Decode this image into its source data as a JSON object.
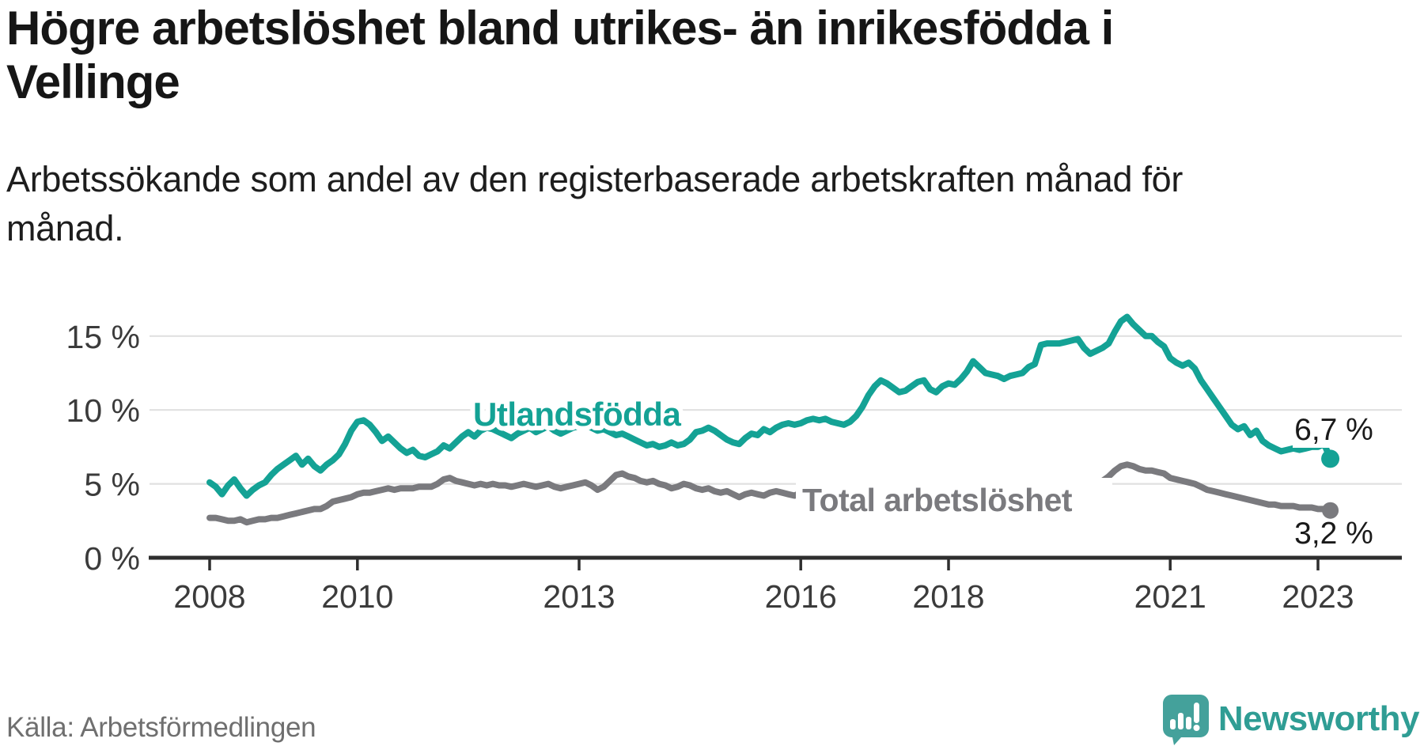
{
  "header": {
    "title_lines": [
      "Högre arbetslöshet bland utrikes- än inrikesfödda i",
      "Vellinge"
    ],
    "subtitle_lines": [
      "Arbetssökande som andel av den registerbaserade arbetskraften månad för",
      "månad."
    ]
  },
  "footer": {
    "source": "Källa: Arbetsförmedlingen",
    "brand": "Newsworthy"
  },
  "colors": {
    "series_foreign": "#14a295",
    "series_total": "#7a7a7e",
    "axis": "#2e2e2e",
    "axis_text": "#3b3b3b",
    "gridline": "#e1e1e1",
    "end_label_text": "#1a1a1a",
    "logo_bubble": "#44a19b",
    "logo_text": "#2f9d94"
  },
  "chart_data": {
    "type": "line",
    "unit": "%",
    "frequency": "monthly",
    "x_start": {
      "year": 2008,
      "month": 1
    },
    "x_end": {
      "year": 2023,
      "month": 3
    },
    "x_ticks": [
      2008,
      2010,
      2013,
      2016,
      2018,
      2021,
      2023
    ],
    "y_ticks": [
      0,
      5,
      10,
      15
    ],
    "y_tick_suffix": " %",
    "ylim": [
      0,
      16.8
    ],
    "grid": "horizontal",
    "series": [
      {
        "name": "Utlandsfödda",
        "color": "#14a295",
        "end_label": "6,7 %",
        "end_value": 6.7,
        "values": [
          5.1,
          4.8,
          4.3,
          4.9,
          5.3,
          4.7,
          4.2,
          4.6,
          4.9,
          5.1,
          5.6,
          6.0,
          6.3,
          6.6,
          6.9,
          6.3,
          6.7,
          6.2,
          5.9,
          6.3,
          6.6,
          7.0,
          7.7,
          8.6,
          9.2,
          9.3,
          9.0,
          8.5,
          7.9,
          8.2,
          7.8,
          7.4,
          7.1,
          7.3,
          6.9,
          6.8,
          7.0,
          7.2,
          7.6,
          7.4,
          7.8,
          8.2,
          8.5,
          8.2,
          8.6,
          8.8,
          8.7,
          8.5,
          8.3,
          8.1,
          8.4,
          8.6,
          8.8,
          8.5,
          8.7,
          8.9,
          8.6,
          8.4,
          8.6,
          8.8,
          8.9,
          9.0,
          8.8,
          8.6,
          8.7,
          8.5,
          8.3,
          8.4,
          8.2,
          8.0,
          7.8,
          7.6,
          7.7,
          7.5,
          7.6,
          7.8,
          7.6,
          7.7,
          8.0,
          8.5,
          8.6,
          8.8,
          8.6,
          8.3,
          8.0,
          7.8,
          7.7,
          8.1,
          8.4,
          8.3,
          8.7,
          8.5,
          8.8,
          9.0,
          9.1,
          9.0,
          9.1,
          9.3,
          9.4,
          9.3,
          9.4,
          9.2,
          9.1,
          9.0,
          9.2,
          9.6,
          10.2,
          11.0,
          11.6,
          12.0,
          11.8,
          11.5,
          11.2,
          11.3,
          11.6,
          11.9,
          12.0,
          11.4,
          11.2,
          11.6,
          11.8,
          11.7,
          12.1,
          12.6,
          13.3,
          12.9,
          12.5,
          12.4,
          12.3,
          12.1,
          12.3,
          12.4,
          12.5,
          12.9,
          13.1,
          14.4,
          14.5,
          14.5,
          14.5,
          14.6,
          14.7,
          14.8,
          14.2,
          13.8,
          14.0,
          14.2,
          14.5,
          15.3,
          16.0,
          16.3,
          15.8,
          15.4,
          15.0,
          15.0,
          14.6,
          14.3,
          13.5,
          13.2,
          13.0,
          13.2,
          12.8,
          12.0,
          11.4,
          10.8,
          10.2,
          9.6,
          9.0,
          8.7,
          8.9,
          8.3,
          8.6,
          7.9,
          7.6,
          7.4,
          7.2,
          7.3,
          7.4,
          7.3,
          7.4,
          7.5,
          7.5,
          7.7,
          6.7
        ]
      },
      {
        "name": "Total arbetslöshet",
        "color": "#7a7a7e",
        "end_label": "3,2 %",
        "end_value": 3.2,
        "values": [
          2.7,
          2.7,
          2.6,
          2.5,
          2.5,
          2.6,
          2.4,
          2.5,
          2.6,
          2.6,
          2.7,
          2.7,
          2.8,
          2.9,
          3.0,
          3.1,
          3.2,
          3.3,
          3.3,
          3.5,
          3.8,
          3.9,
          4.0,
          4.1,
          4.3,
          4.4,
          4.4,
          4.5,
          4.6,
          4.7,
          4.6,
          4.7,
          4.7,
          4.7,
          4.8,
          4.8,
          4.8,
          5.0,
          5.3,
          5.4,
          5.2,
          5.1,
          5.0,
          4.9,
          5.0,
          4.9,
          5.0,
          4.9,
          4.9,
          4.8,
          4.9,
          5.0,
          4.9,
          4.8,
          4.9,
          5.0,
          4.8,
          4.7,
          4.8,
          4.9,
          5.0,
          5.1,
          4.9,
          4.6,
          4.8,
          5.2,
          5.6,
          5.7,
          5.5,
          5.4,
          5.2,
          5.1,
          5.2,
          5.0,
          4.9,
          4.7,
          4.8,
          5.0,
          4.9,
          4.7,
          4.6,
          4.7,
          4.5,
          4.4,
          4.5,
          4.3,
          4.1,
          4.3,
          4.4,
          4.3,
          4.2,
          4.4,
          4.5,
          4.4,
          4.3,
          4.2,
          4.4,
          4.3,
          4.2,
          4.3,
          4.2,
          4.1,
          4.2,
          4.3,
          4.2,
          4.1,
          4.2,
          4.1,
          4.2,
          4.1,
          4.0,
          4.1,
          4.2,
          4.1,
          4.0,
          4.1,
          4.2,
          4.1,
          4.0,
          4.1,
          4.0,
          4.1,
          4.0,
          3.9,
          4.0,
          4.1,
          4.0,
          3.9,
          4.0,
          4.1,
          4.0,
          4.1,
          4.1,
          4.2,
          4.3,
          4.4,
          4.5,
          4.6,
          4.5,
          4.6,
          4.7,
          4.8,
          4.9,
          5.0,
          5.1,
          5.2,
          5.5,
          5.9,
          6.2,
          6.3,
          6.2,
          6.0,
          5.9,
          5.9,
          5.8,
          5.7,
          5.4,
          5.3,
          5.2,
          5.1,
          5.0,
          4.8,
          4.6,
          4.5,
          4.4,
          4.3,
          4.2,
          4.1,
          4.0,
          3.9,
          3.8,
          3.7,
          3.6,
          3.6,
          3.5,
          3.5,
          3.5,
          3.4,
          3.4,
          3.4,
          3.3,
          3.3,
          3.2
        ]
      }
    ]
  }
}
